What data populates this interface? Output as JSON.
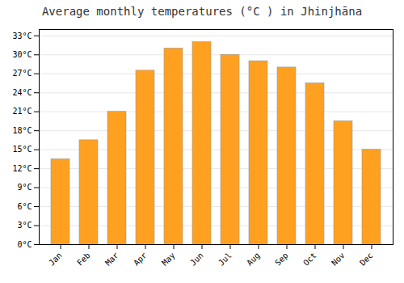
{
  "chart_data": {
    "type": "bar",
    "title": "Average monthly temperatures (°C ) in Jhinjhāna",
    "categories": [
      "Jan",
      "Feb",
      "Mar",
      "Apr",
      "May",
      "Jun",
      "Jul",
      "Aug",
      "Sep",
      "Oct",
      "Nov",
      "Dec"
    ],
    "values": [
      13.5,
      16.5,
      21.0,
      27.5,
      31.0,
      32.0,
      30.0,
      29.0,
      28.0,
      25.5,
      19.5,
      15.0
    ],
    "color": "#FFA020",
    "ylim": [
      0,
      34
    ],
    "yticks": [
      {
        "value": 0,
        "label": "0°C"
      },
      {
        "value": 3,
        "label": "3°C"
      },
      {
        "value": 6,
        "label": "6°C"
      },
      {
        "value": 9,
        "label": "9°C"
      },
      {
        "value": 12,
        "label": "12°C"
      },
      {
        "value": 15,
        "label": "15°C"
      },
      {
        "value": 18,
        "label": "18°C"
      },
      {
        "value": 21,
        "label": "21°C"
      },
      {
        "value": 24,
        "label": "24°C"
      },
      {
        "value": 27,
        "label": "27°C"
      },
      {
        "value": 30,
        "label": "30°C"
      },
      {
        "value": 33,
        "label": "33°C"
      }
    ],
    "grid": true
  }
}
